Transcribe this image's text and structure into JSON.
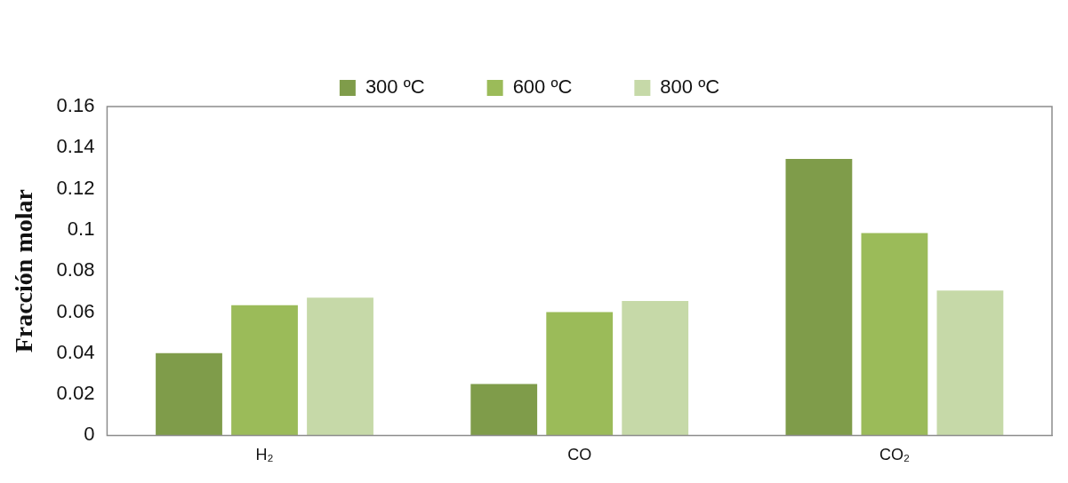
{
  "chart_data": {
    "type": "bar",
    "ylabel": "Fracción molar",
    "categories": [
      "H₂",
      "CO",
      "CO₂"
    ],
    "series": [
      {
        "name": "300 ºC",
        "color": "#7f9c4a",
        "values": [
          0.04,
          0.025,
          0.1345
        ]
      },
      {
        "name": "600 ºC",
        "color": "#9bbb59",
        "values": [
          0.0633,
          0.06,
          0.0984
        ]
      },
      {
        "name": "800 ºC",
        "color": "#c6d9a8",
        "values": [
          0.067,
          0.0654,
          0.0705
        ]
      }
    ],
    "ylim": [
      0,
      0.16
    ],
    "yticks": [
      0,
      0.02,
      0.04,
      0.06,
      0.08,
      0.1,
      0.12,
      0.14,
      0.16
    ],
    "grid": false,
    "legend": "top"
  }
}
